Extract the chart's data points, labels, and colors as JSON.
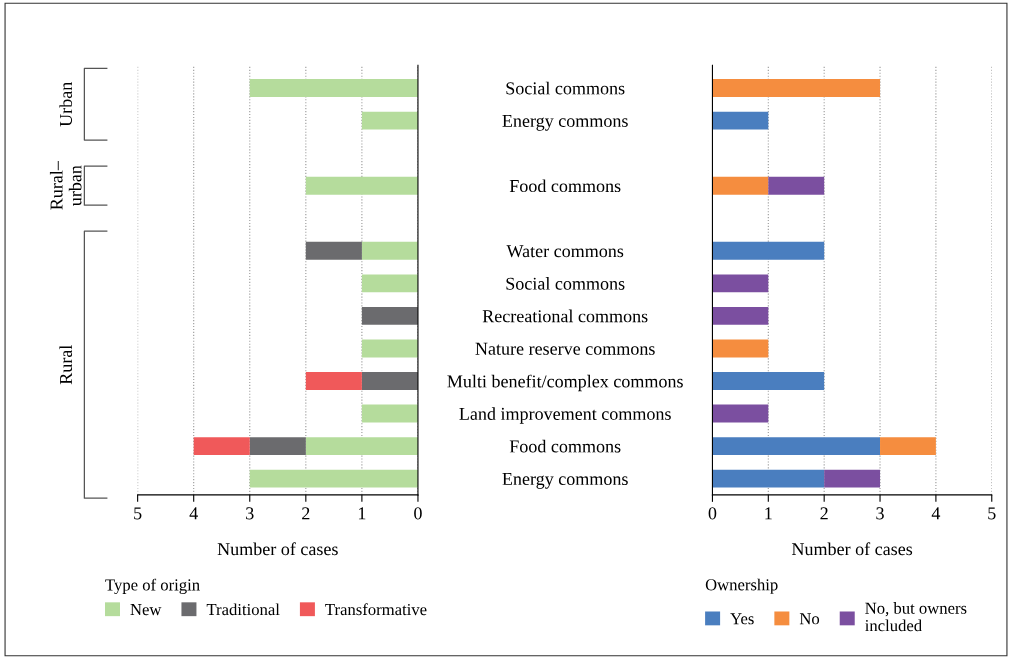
{
  "chart_data": [
    {
      "type": "bar",
      "orientation": "horizontal",
      "stacked": true,
      "categories": [
        "Social commons",
        "Energy commons",
        null,
        "Food commons",
        null,
        "Water commons",
        "Social commons",
        "Recreational commons",
        "Nature reserve commons",
        "Multi benefit/complex commons",
        "Land improvement commons",
        "Food commons",
        "Energy commons"
      ],
      "series": [
        {
          "name": "New",
          "color": "#b5dc9c",
          "values": [
            3,
            1,
            null,
            2,
            null,
            1,
            1,
            null,
            1,
            null,
            1,
            2,
            3
          ]
        },
        {
          "name": "Traditional",
          "color": "#6b6b6e",
          "values": [
            null,
            null,
            null,
            null,
            null,
            1,
            null,
            1,
            null,
            1,
            null,
            1,
            null
          ]
        },
        {
          "name": "Transformative",
          "color": "#f0595a",
          "values": [
            null,
            null,
            null,
            null,
            null,
            null,
            null,
            null,
            null,
            1,
            null,
            1,
            null
          ]
        }
      ],
      "xlim": [
        5,
        0
      ],
      "xticks": [
        5,
        4,
        3,
        2,
        1,
        0
      ],
      "xlabel": "Number of cases",
      "legend_title": "Type of origin",
      "legend": "bottom",
      "grid": "x",
      "annotations": [
        "Urban",
        "Rural–\nurban",
        "Rural"
      ]
    },
    {
      "type": "bar",
      "orientation": "horizontal",
      "stacked": true,
      "categories": [
        null,
        null,
        null,
        null,
        null,
        null,
        null,
        null,
        null,
        null,
        null,
        null,
        null
      ],
      "series": [
        {
          "name": "Yes",
          "color": "#4a7ebf",
          "values": [
            null,
            1,
            null,
            null,
            null,
            2,
            null,
            null,
            null,
            2,
            null,
            3,
            2
          ]
        },
        {
          "name": "No",
          "color": "#f58d3f",
          "values": [
            3,
            null,
            null,
            1,
            null,
            null,
            null,
            null,
            1,
            null,
            null,
            1,
            null
          ]
        },
        {
          "name": "No, but owners\nincluded",
          "color": "#7b4fa0",
          "values": [
            null,
            null,
            null,
            1,
            null,
            null,
            1,
            1,
            null,
            null,
            1,
            null,
            1
          ]
        }
      ],
      "xlim": [
        0,
        5
      ],
      "xticks": [
        0,
        1,
        2,
        3,
        4,
        5
      ],
      "xlabel": "Number of cases",
      "legend_title": "Ownership",
      "legend": "bottom",
      "grid": "x",
      "tick_labels": "x"
    }
  ]
}
